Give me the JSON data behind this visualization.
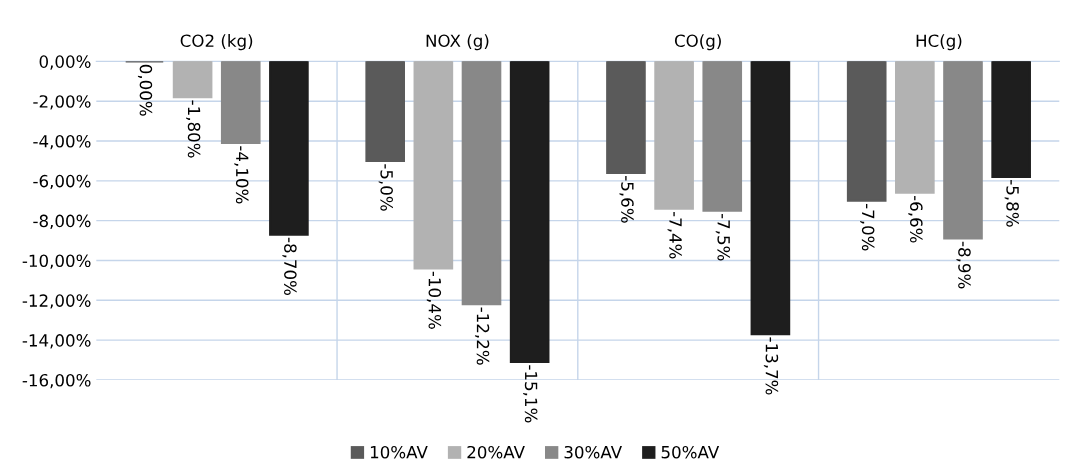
{
  "chart_data": {
    "type": "bar",
    "categories": [
      "CO2 (kg)",
      "NOX (g)",
      "CO(g)",
      "HC(g)"
    ],
    "series": [
      {
        "name": "10%AV",
        "color": "#5a5a5a",
        "values": [
          0.0,
          -5.0,
          -5.6,
          -7.0
        ],
        "value_labels": [
          "0,00%",
          "-5,0%",
          "-5,6%",
          "-7,0%"
        ]
      },
      {
        "name": "20%AV",
        "color": "#b2b2b2",
        "values": [
          -1.8,
          -10.4,
          -7.4,
          -6.6
        ],
        "value_labels": [
          "-1,80%",
          "-10,4%",
          "-7,4%",
          "-6,6%"
        ]
      },
      {
        "name": "30%AV",
        "color": "#888888",
        "values": [
          -4.1,
          -12.2,
          -7.5,
          -8.9
        ],
        "value_labels": [
          "-4,10%",
          "-12,2%",
          "-7,5%",
          "-8,9%"
        ]
      },
      {
        "name": "50%AV",
        "color": "#1e1e1e",
        "values": [
          -8.7,
          -15.1,
          -13.7,
          -5.8
        ],
        "value_labels": [
          "-8,70%",
          "-15,1%",
          "-13,7%",
          "-5,8%"
        ]
      }
    ],
    "ylim": [
      -16,
      0
    ],
    "yticks": [
      {
        "value": 0,
        "label": "0,00%"
      },
      {
        "value": -2,
        "label": "-2,00%"
      },
      {
        "value": -4,
        "label": "-4,00%"
      },
      {
        "value": -6,
        "label": "-6,00%"
      },
      {
        "value": -8,
        "label": "-8,00%"
      },
      {
        "value": -10,
        "label": "-10,00%"
      },
      {
        "value": -12,
        "label": "-12,00%"
      },
      {
        "value": -14,
        "label": "-14,00%"
      },
      {
        "value": -16,
        "label": "-16,00%"
      }
    ],
    "grid": true,
    "legend": "bottom"
  }
}
